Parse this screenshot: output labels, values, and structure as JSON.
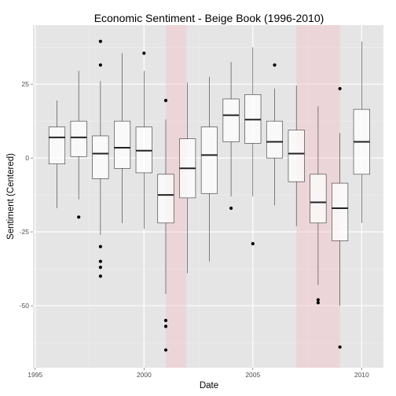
{
  "chart_data": {
    "type": "box",
    "title": "Economic Sentiment - Beige Book (1996-2010)",
    "xlabel": "Date",
    "ylabel": "Sentiment (Centered)",
    "xlim": [
      1994.9,
      2011.0
    ],
    "ylim": [
      -71,
      45
    ],
    "x_ticks": [
      {
        "value": 1995,
        "label": "1995"
      },
      {
        "value": 2000,
        "label": "2000"
      },
      {
        "value": 2005,
        "label": "2005"
      },
      {
        "value": 2010,
        "label": "2010"
      }
    ],
    "y_ticks": [
      {
        "value": -50,
        "label": "-50"
      },
      {
        "value": -25,
        "label": "-25"
      },
      {
        "value": 0,
        "label": "0"
      },
      {
        "value": 25,
        "label": "25"
      }
    ],
    "grid": true,
    "background": "#e5e5e5",
    "recession_color": "#f4c2c8",
    "recessions": [
      [
        2001.0,
        2001.95
      ],
      [
        2007.0,
        2009.0
      ]
    ],
    "boxes": [
      {
        "year": 1996,
        "whisker_low": -17,
        "q1": -2,
        "median": 7,
        "q3": 10.5,
        "whisker_high": 19.5,
        "outliers": []
      },
      {
        "year": 1997,
        "whisker_low": -14,
        "q1": 0.5,
        "median": 7,
        "q3": 12.5,
        "whisker_high": 29.5,
        "outliers": [
          -20
        ]
      },
      {
        "year": 1998,
        "whisker_low": -26,
        "q1": -7,
        "median": 1.5,
        "q3": 7.5,
        "whisker_high": 26,
        "outliers": [
          39.5,
          31.5,
          -30,
          -35,
          -37,
          -40
        ]
      },
      {
        "year": 1999,
        "whisker_low": -22,
        "q1": -3.5,
        "median": 3.5,
        "q3": 12.5,
        "whisker_high": 35.5,
        "outliers": []
      },
      {
        "year": 2000,
        "whisker_low": -24,
        "q1": -5,
        "median": 2.5,
        "q3": 10.5,
        "whisker_high": 29.5,
        "outliers": [
          35.5
        ]
      },
      {
        "year": 2001,
        "whisker_low": -46,
        "q1": -22,
        "median": -12.5,
        "q3": -5.5,
        "whisker_high": 13,
        "outliers": [
          19.5,
          -55,
          -57,
          -65
        ]
      },
      {
        "year": 2002,
        "whisker_low": -39,
        "q1": -13.5,
        "median": -3.5,
        "q3": 6.5,
        "whisker_high": 25.5,
        "outliers": []
      },
      {
        "year": 2003,
        "whisker_low": -35,
        "q1": -12,
        "median": 1,
        "q3": 10.5,
        "whisker_high": 27.5,
        "outliers": []
      },
      {
        "year": 2004,
        "whisker_low": -13,
        "q1": 5.5,
        "median": 14.5,
        "q3": 20,
        "whisker_high": 32.5,
        "outliers": [
          -17
        ]
      },
      {
        "year": 2005,
        "whisker_low": -13,
        "q1": 5,
        "median": 13,
        "q3": 21.5,
        "whisker_high": 37.5,
        "outliers": [
          -29
        ]
      },
      {
        "year": 2006,
        "whisker_low": -16,
        "q1": 0,
        "median": 5.5,
        "q3": 12.5,
        "whisker_high": 23.5,
        "outliers": [
          31.5
        ]
      },
      {
        "year": 2007,
        "whisker_low": -23,
        "q1": -8,
        "median": 1.5,
        "q3": 9.5,
        "whisker_high": 24.5,
        "outliers": []
      },
      {
        "year": 2008,
        "whisker_low": -43,
        "q1": -22,
        "median": -15,
        "q3": -5.5,
        "whisker_high": 17.5,
        "outliers": [
          -48,
          -49
        ]
      },
      {
        "year": 2009,
        "whisker_low": -50,
        "q1": -28,
        "median": -17,
        "q3": -8.5,
        "whisker_high": 8.5,
        "outliers": [
          23.5,
          -64
        ]
      },
      {
        "year": 2010,
        "whisker_low": -22,
        "q1": -5.5,
        "median": 5.5,
        "q3": 16.5,
        "whisker_high": 39.5,
        "outliers": []
      }
    ]
  }
}
